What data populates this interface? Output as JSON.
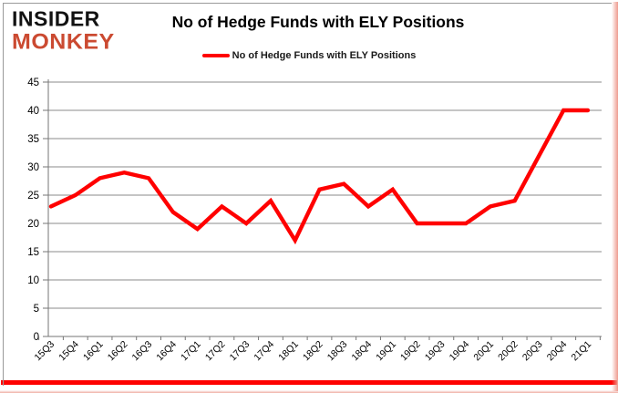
{
  "logo": {
    "line1": "INSIDER",
    "line2": "MONKEY",
    "line1_color": "#121212",
    "line2_color": "#cb4a31"
  },
  "header": {
    "title": "No of Hedge Funds with ELY Positions"
  },
  "legend": {
    "label": "No of Hedge Funds with ELY Positions",
    "marker_color": "#ff0000"
  },
  "chart_data": {
    "type": "line",
    "title": "No of Hedge Funds with ELY Positions",
    "categories": [
      "15Q3",
      "15Q4",
      "16Q1",
      "16Q2",
      "16Q3",
      "16Q4",
      "17Q1",
      "17Q2",
      "17Q3",
      "17Q4",
      "18Q1",
      "18Q2",
      "18Q3",
      "18Q4",
      "19Q1",
      "19Q2",
      "19Q3",
      "19Q4",
      "20Q1",
      "20Q2",
      "20Q3",
      "20Q4",
      "21Q1"
    ],
    "series": [
      {
        "name": "No of Hedge Funds with ELY Positions",
        "color": "#ff0000",
        "values": [
          23,
          25,
          28,
          29,
          28,
          22,
          19,
          23,
          20,
          24,
          17,
          26,
          27,
          23,
          26,
          20,
          20,
          20,
          23,
          24,
          32,
          40,
          40
        ]
      }
    ],
    "xlabel": "",
    "ylabel": "",
    "ylim": [
      0,
      45
    ],
    "yticks": [
      0,
      5,
      10,
      15,
      20,
      25,
      30,
      35,
      40,
      45
    ],
    "grid": true,
    "legend_position": "top-center"
  },
  "colors": {
    "line": "#ff0000",
    "grid": "#8b8b8b",
    "axis": "#767676",
    "tick_text": "#000000",
    "accent_bar": "#fe0100"
  }
}
